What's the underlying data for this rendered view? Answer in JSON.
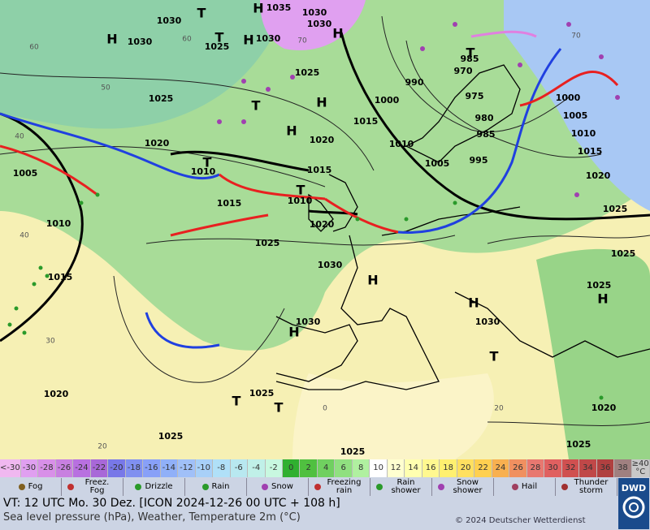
{
  "map": {
    "pressure_labels": [
      "1035",
      "1030",
      "1030",
      "1030",
      "1030",
      "1030",
      "1025",
      "1025",
      "1025",
      "1020",
      "1020",
      "1015",
      "1015",
      "1015",
      "1010",
      "1010",
      "1010",
      "1020",
      "1025",
      "1030",
      "1030",
      "1030",
      "1025",
      "1025",
      "1025",
      "1020",
      "1015",
      "1010",
      "1005",
      "1000",
      "1000",
      "990",
      "985",
      "970",
      "975",
      "980",
      "985",
      "995",
      "1005",
      "1005",
      "1010",
      "1015",
      "1020",
      "1025",
      "1025",
      "1025",
      "1025",
      "1020"
    ],
    "centers": [
      "T",
      "H",
      "H",
      "T",
      "H",
      "H",
      "H",
      "T",
      "H",
      "T",
      "T",
      "H",
      "H",
      "H",
      "T",
      "T",
      "H",
      "T",
      "T"
    ],
    "grid_labels": [
      "60",
      "50",
      "40",
      "40",
      "30",
      "20",
      "60",
      "70",
      "0",
      "20",
      "70"
    ]
  },
  "legend": {
    "colorbar": [
      {
        "label": "<-30",
        "color": "#f0b8f0"
      },
      {
        "label": "-30",
        "color": "#e0a0f0"
      },
      {
        "label": "-28",
        "color": "#d890e8"
      },
      {
        "label": "-26",
        "color": "#c880e0"
      },
      {
        "label": "-24",
        "color": "#b870e0"
      },
      {
        "label": "-22",
        "color": "#a868d8"
      },
      {
        "label": "-20",
        "color": "#7878e8"
      },
      {
        "label": "-18",
        "color": "#8090f0"
      },
      {
        "label": "-16",
        "color": "#88a0f8"
      },
      {
        "label": "-14",
        "color": "#90b0f8"
      },
      {
        "label": "-12",
        "color": "#a0c0f8"
      },
      {
        "label": "-10",
        "color": "#a8d0f8"
      },
      {
        "label": "-8",
        "color": "#b0e0f8"
      },
      {
        "label": "-6",
        "color": "#b8e8f0"
      },
      {
        "label": "-4",
        "color": "#c0f0e8"
      },
      {
        "label": "-2",
        "color": "#c8f8e0"
      },
      {
        "label": "0",
        "color": "#30b030"
      },
      {
        "label": "2",
        "color": "#50c040"
      },
      {
        "label": "4",
        "color": "#70d060"
      },
      {
        "label": "6",
        "color": "#90e080"
      },
      {
        "label": "8",
        "color": "#b0f0a0"
      },
      {
        "label": "10",
        "color": "#ffffff"
      },
      {
        "label": "12",
        "color": "#ffffd0"
      },
      {
        "label": "14",
        "color": "#ffffb0"
      },
      {
        "label": "16",
        "color": "#fff890"
      },
      {
        "label": "18",
        "color": "#fff070"
      },
      {
        "label": "20",
        "color": "#ffe060"
      },
      {
        "label": "22",
        "color": "#ffd050"
      },
      {
        "label": "24",
        "color": "#f8b050"
      },
      {
        "label": "26",
        "color": "#f09060"
      },
      {
        "label": "28",
        "color": "#e87870"
      },
      {
        "label": "30",
        "color": "#e06060"
      },
      {
        "label": "32",
        "color": "#d05050"
      },
      {
        "label": "34",
        "color": "#c04848"
      },
      {
        "label": "36",
        "color": "#b04040"
      },
      {
        "label": "38",
        "color": "#a08080"
      },
      {
        "label": "≥40",
        "color": "#c8c8c8"
      }
    ],
    "unit": "°C",
    "weather": [
      "Fog",
      "Freez. Fog",
      "Drizzle",
      "Rain",
      "Snow",
      "Freezing rain",
      "Rain shower",
      "Snow shower",
      "Hail",
      "Thunder storm"
    ]
  },
  "footer": {
    "valid_time": "VT: 12 UTC Mo.   30 Dez. [ICON 2024-12-26  00 UTC + 108 h]",
    "subtitle": "Sea level pressure (hPa), Weather, Temperature 2m (°C)",
    "copyright": "© 2024 Deutscher Wetterdienst",
    "logo": "DWD"
  }
}
